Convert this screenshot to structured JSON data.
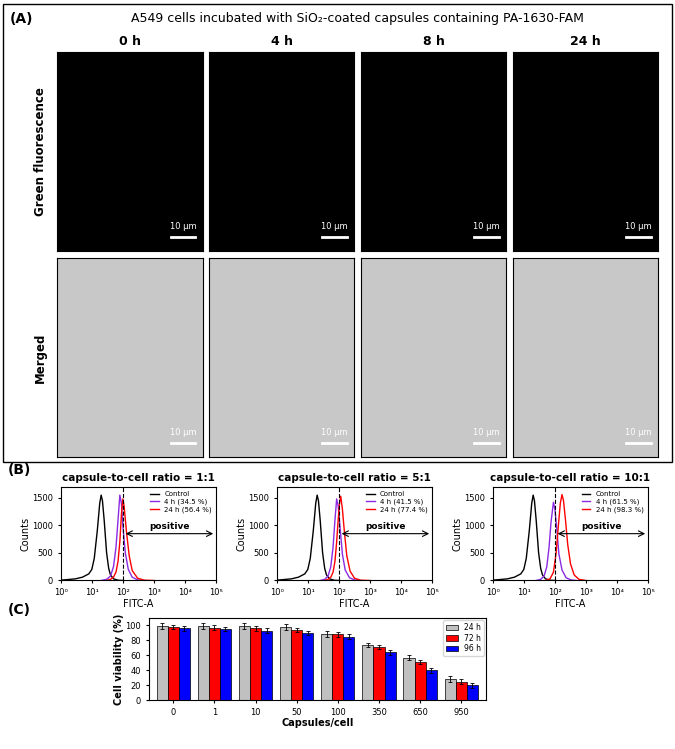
{
  "panel_a": {
    "label": "(A)",
    "title": "A549 cells incubated with SiO₂-coated capsules containing PA-1630-FAM",
    "columns": [
      "0 h",
      "4 h",
      "8 h",
      "24 h"
    ],
    "rows": [
      "Green fluorescence",
      "Merged"
    ],
    "scale_bar": "10 μm"
  },
  "chart_data": [
    {
      "type": "line",
      "panel_label": "(B)",
      "title": "capsule-to-cell ratio = 1:1",
      "x_label": "FITC-A",
      "y_label": "Counts",
      "log": "x",
      "xlim": [
        1,
        100000
      ],
      "xticks": [
        {
          "value": 1,
          "label": "10⁰"
        },
        {
          "value": 10,
          "label": "10¹"
        },
        {
          "value": 100,
          "label": "10²"
        },
        {
          "value": 1000,
          "label": "10³"
        },
        {
          "value": 10000,
          "label": "10⁴"
        },
        {
          "value": 100000,
          "label": "10⁵"
        }
      ],
      "ylim": [
        0,
        1700
      ],
      "yticks": [
        0,
        500,
        1000,
        1500
      ],
      "legend": "upper right",
      "threshold": 100,
      "annotations": [
        {
          "text": "positive",
          "x_from": 100,
          "x_to": 100000
        }
      ],
      "series": [
        {
          "name": "Control",
          "color": "#000000",
          "x": [
            1,
            3,
            5,
            8,
            10,
            12,
            15,
            18,
            20,
            22,
            25,
            30,
            35,
            40,
            50,
            70,
            100
          ],
          "values": [
            5,
            30,
            60,
            120,
            200,
            400,
            900,
            1400,
            1550,
            1450,
            1100,
            500,
            220,
            100,
            30,
            5,
            0
          ]
        },
        {
          "name": "4 h (34.5 %)",
          "color": "#8a2be2",
          "x": [
            20,
            30,
            40,
            50,
            60,
            70,
            80,
            90,
            100,
            120,
            150,
            200,
            300,
            500
          ],
          "values": [
            0,
            20,
            80,
            250,
            600,
            1100,
            1550,
            1400,
            1000,
            500,
            200,
            60,
            10,
            0
          ]
        },
        {
          "name": "24 h (56.4 %)",
          "color": "#ff0000",
          "x": [
            30,
            40,
            50,
            60,
            70,
            80,
            90,
            100,
            110,
            130,
            160,
            200,
            300,
            500,
            1000
          ],
          "values": [
            0,
            20,
            60,
            150,
            350,
            700,
            1200,
            1480,
            1350,
            900,
            450,
            180,
            40,
            5,
            0
          ]
        }
      ]
    },
    {
      "type": "line",
      "title": "capsule-to-cell ratio = 5:1",
      "x_label": "FITC-A",
      "y_label": "Counts",
      "log": "x",
      "xlim": [
        1,
        100000
      ],
      "xticks": [
        {
          "value": 1,
          "label": "10⁰"
        },
        {
          "value": 10,
          "label": "10¹"
        },
        {
          "value": 100,
          "label": "10²"
        },
        {
          "value": 1000,
          "label": "10³"
        },
        {
          "value": 10000,
          "label": "10⁴"
        },
        {
          "value": 100000,
          "label": "10⁵"
        }
      ],
      "ylim": [
        0,
        1700
      ],
      "yticks": [
        0,
        500,
        1000,
        1500
      ],
      "legend": "upper right",
      "threshold": 100,
      "annotations": [
        {
          "text": "positive",
          "x_from": 100,
          "x_to": 100000
        }
      ],
      "series": [
        {
          "name": "Control",
          "color": "#000000",
          "x": [
            1,
            3,
            5,
            8,
            10,
            12,
            15,
            18,
            20,
            22,
            25,
            30,
            35,
            40,
            50,
            70,
            100
          ],
          "values": [
            5,
            30,
            60,
            120,
            200,
            400,
            900,
            1400,
            1550,
            1450,
            1100,
            500,
            220,
            100,
            30,
            5,
            0
          ]
        },
        {
          "name": "4 h (41.5 %)",
          "color": "#8a2be2",
          "x": [
            25,
            35,
            45,
            55,
            65,
            75,
            85,
            95,
            110,
            130,
            160,
            220,
            320,
            500
          ],
          "values": [
            0,
            20,
            80,
            250,
            600,
            1100,
            1480,
            1350,
            950,
            480,
            190,
            50,
            10,
            0
          ]
        },
        {
          "name": "24 h (77.4 %)",
          "color": "#ff0000",
          "x": [
            35,
            45,
            55,
            65,
            75,
            85,
            95,
            105,
            115,
            130,
            150,
            180,
            230,
            320,
            500,
            1000
          ],
          "values": [
            0,
            20,
            60,
            150,
            350,
            700,
            1100,
            1400,
            1530,
            1300,
            900,
            450,
            170,
            40,
            5,
            0
          ]
        }
      ]
    },
    {
      "type": "line",
      "title": "capsule-to-cell ratio = 10:1",
      "x_label": "FITC-A",
      "y_label": "Counts",
      "log": "x",
      "xlim": [
        1,
        100000
      ],
      "xticks": [
        {
          "value": 1,
          "label": "10⁰"
        },
        {
          "value": 10,
          "label": "10¹"
        },
        {
          "value": 100,
          "label": "10²"
        },
        {
          "value": 1000,
          "label": "10³"
        },
        {
          "value": 10000,
          "label": "10⁴"
        },
        {
          "value": 100000,
          "label": "10⁵"
        }
      ],
      "ylim": [
        0,
        1700
      ],
      "yticks": [
        0,
        500,
        1000,
        1500
      ],
      "legend": "upper right",
      "threshold": 100,
      "annotations": [
        {
          "text": "positive",
          "x_from": 100,
          "x_to": 100000
        }
      ],
      "series": [
        {
          "name": "Control",
          "color": "#000000",
          "x": [
            1,
            3,
            5,
            8,
            10,
            12,
            15,
            18,
            20,
            22,
            25,
            30,
            35,
            40,
            50,
            70,
            100
          ],
          "values": [
            5,
            30,
            60,
            120,
            200,
            400,
            900,
            1400,
            1550,
            1450,
            1100,
            500,
            220,
            100,
            30,
            5,
            0
          ]
        },
        {
          "name": "4 h (61.5 %)",
          "color": "#8a2be2",
          "x": [
            25,
            35,
            45,
            55,
            65,
            75,
            90,
            100,
            115,
            135,
            170,
            230,
            330,
            500
          ],
          "values": [
            0,
            20,
            80,
            250,
            600,
            1050,
            1420,
            1300,
            950,
            480,
            190,
            50,
            10,
            0
          ]
        },
        {
          "name": "24 h (98.3 %)",
          "color": "#ff0000",
          "x": [
            50,
            70,
            90,
            110,
            130,
            150,
            170,
            190,
            220,
            260,
            320,
            420,
            600,
            1000
          ],
          "values": [
            0,
            30,
            150,
            500,
            1000,
            1400,
            1560,
            1450,
            1100,
            650,
            300,
            100,
            20,
            0
          ]
        }
      ]
    },
    {
      "type": "bar",
      "panel_label": "(C)",
      "x_label": "Capsules/cell",
      "y_label": "Cell viability (%)",
      "categories": [
        "0",
        "1",
        "10",
        "50",
        "100",
        "350",
        "650",
        "950"
      ],
      "ylim": [
        0,
        110
      ],
      "yticks": [
        0,
        20,
        40,
        60,
        80,
        100
      ],
      "legend": "upper right",
      "series": [
        {
          "name": "24 h",
          "color": "#c0c0c0",
          "values": [
            99,
            99,
            99,
            98,
            89,
            74,
            57,
            28
          ],
          "errors": [
            4,
            4,
            4,
            4,
            4,
            3,
            3,
            4
          ]
        },
        {
          "name": "72 h",
          "color": "#ff0000",
          "values": [
            98,
            97,
            96,
            94,
            88,
            71,
            51,
            25
          ],
          "errors": [
            3,
            3,
            3,
            3,
            3,
            3,
            3,
            3
          ]
        },
        {
          "name": "96 h",
          "color": "#0000ff",
          "values": [
            96,
            95,
            93,
            90,
            85,
            64,
            40,
            20
          ],
          "errors": [
            3,
            3,
            3,
            3,
            3,
            3,
            3,
            3
          ]
        }
      ]
    }
  ]
}
